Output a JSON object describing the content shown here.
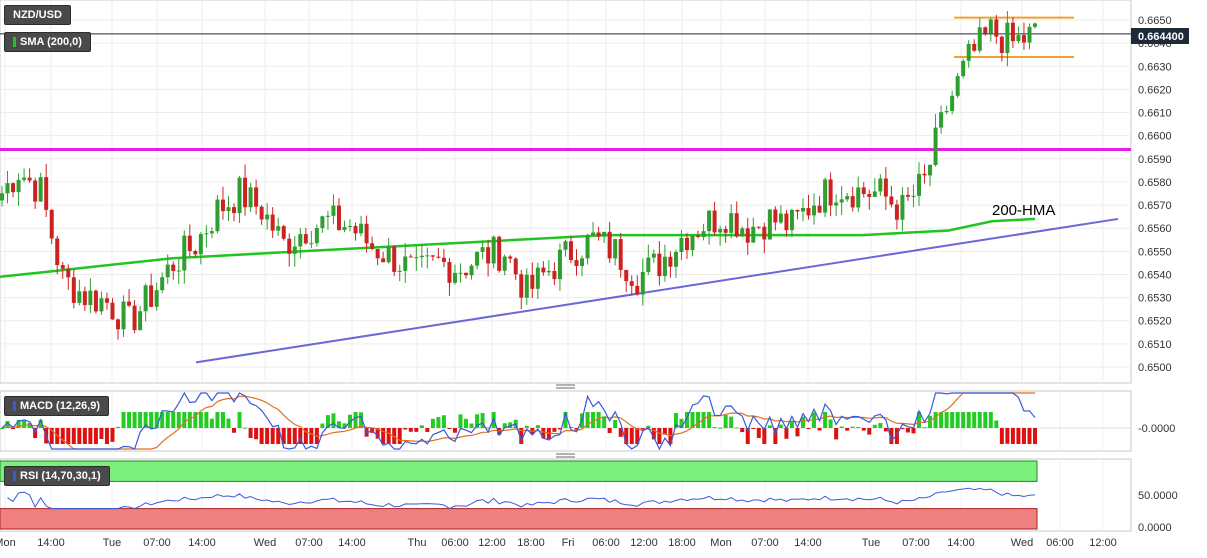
{
  "symbol": "NZD/USD",
  "current_price_label": "0.664400",
  "indicators": {
    "sma": "SMA (200,0)",
    "macd": "MACD (12,26,9)",
    "rsi": "RSI (14,70,30,1)"
  },
  "annotations": {
    "hma_label": "200-HMA"
  },
  "colors": {
    "up": "#2e9e2e",
    "down": "#cc2222",
    "hma": "#22c422",
    "support": "#6a68d8",
    "resistance": "#e41ee4",
    "channel": "#f0a030",
    "macd": "#3a5ad8",
    "signal": "#e07020",
    "rsi": "#3a5ad8",
    "rsi_over": "#7cf07c",
    "rsi_under": "#f08080"
  },
  "chart_data": {
    "type": "candlestick",
    "title": "NZD/USD",
    "price_axis": {
      "ticks": [
        "0.6650",
        "0.6640",
        "0.6630",
        "0.6620",
        "0.6610",
        "0.6600",
        "0.6590",
        "0.6580",
        "0.6570",
        "0.6560",
        "0.6550",
        "0.6540",
        "0.6530",
        "0.6520",
        "0.6510",
        "0.6500"
      ],
      "ylim": [
        0.6495,
        0.6656
      ]
    },
    "time_axis": {
      "labels": [
        "Mon",
        "14:00",
        "Tue",
        "07:00",
        "14:00",
        "Wed",
        "07:00",
        "14:00",
        "Thu",
        "06:00",
        "12:00",
        "18:00",
        "Fri",
        "06:00",
        "12:00",
        "18:00",
        "Mon",
        "07:00",
        "14:00",
        "Tue",
        "07:00",
        "14:00",
        "Wed",
        "06:00",
        "12:00"
      ]
    },
    "last_price": 0.6644,
    "horizontal_resistance": 0.6594,
    "rising_support": {
      "from": 0.6502,
      "to": 0.6564
    },
    "hma_200": [
      0.6539,
      0.6541,
      0.6543,
      0.6545,
      0.6547,
      0.6548,
      0.6549,
      0.655,
      0.6551,
      0.6552,
      0.6553,
      0.6554,
      0.6555,
      0.6556,
      0.6557,
      0.6557,
      0.6557,
      0.6557,
      0.6557,
      0.6557,
      0.6557,
      0.6558,
      0.6559,
      0.6563,
      0.6564
    ],
    "bullish_channel": {
      "top": 0.6651,
      "bottom": 0.6634
    },
    "sample_closes": [
      0.6572,
      0.6585,
      0.6576,
      0.6538,
      0.6531,
      0.6528,
      0.6519,
      0.6531,
      0.6545,
      0.6553,
      0.6568,
      0.6575,
      0.6568,
      0.6553,
      0.656,
      0.6563,
      0.6561,
      0.6552,
      0.6547,
      0.654,
      0.6545,
      0.6543,
      0.6548,
      0.655,
      0.6532,
      0.6542,
      0.655,
      0.6555,
      0.655,
      0.6539,
      0.6545,
      0.6556,
      0.6562,
      0.6566,
      0.656,
      0.6564,
      0.6561,
      0.6572,
      0.6578,
      0.6576,
      0.6575,
      0.6568,
      0.658,
      0.6612,
      0.6633,
      0.6645,
      0.664,
      0.6644
    ],
    "macd": {
      "zero_label": "-0.0000"
    },
    "rsi": {
      "levels": [
        "50.0000",
        "0.0000"
      ],
      "overbought": 70,
      "oversold": 30
    }
  }
}
